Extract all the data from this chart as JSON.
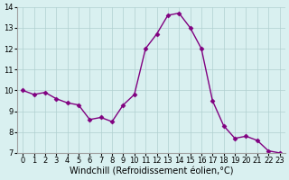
{
  "x": [
    0,
    1,
    2,
    3,
    4,
    5,
    6,
    7,
    8,
    9,
    10,
    11,
    12,
    13,
    14,
    15,
    16,
    17,
    18,
    19,
    20,
    21,
    22,
    23
  ],
  "y": [
    10.0,
    9.8,
    9.9,
    9.6,
    9.4,
    9.3,
    8.6,
    8.7,
    8.5,
    9.3,
    9.8,
    12.0,
    12.7,
    13.6,
    13.7,
    13.0,
    12.0,
    9.5,
    8.3,
    7.7,
    7.8,
    7.6,
    7.1,
    7.0
  ],
  "line_color": "#800080",
  "marker": "D",
  "marker_size": 2.5,
  "bg_color": "#d9f0f0",
  "grid_color": "#b0d0d0",
  "xlabel": "Windchill (Refroidissement éolien,°C)",
  "xlim": [
    -0.5,
    23.5
  ],
  "ylim": [
    7,
    14
  ],
  "yticks": [
    7,
    8,
    9,
    10,
    11,
    12,
    13,
    14
  ],
  "xticks": [
    0,
    1,
    2,
    3,
    4,
    5,
    6,
    7,
    8,
    9,
    10,
    11,
    12,
    13,
    14,
    15,
    16,
    17,
    18,
    19,
    20,
    21,
    22,
    23
  ],
  "xlabel_fontsize": 7,
  "tick_fontsize": 6,
  "line_width": 1.0
}
